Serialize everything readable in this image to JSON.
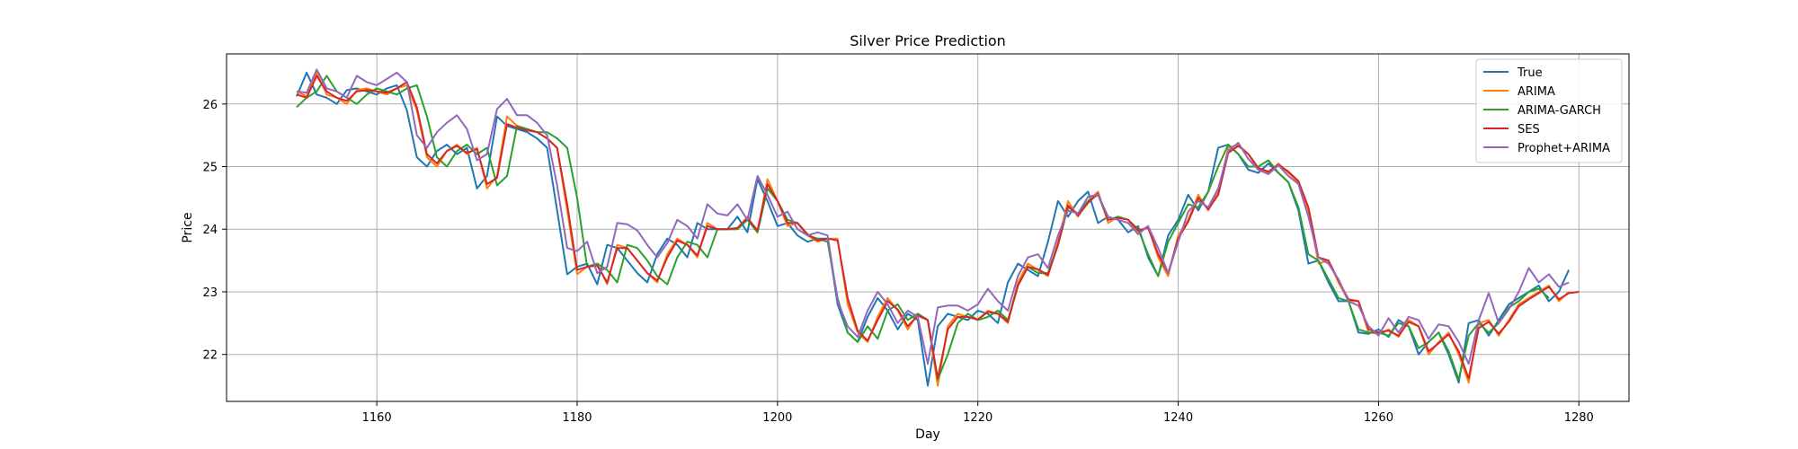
{
  "chart_data": {
    "type": "line",
    "title": "Silver Price Prediction",
    "xlabel": "Day",
    "ylabel": "Price",
    "xlim": [
      1145,
      1285
    ],
    "ylim": [
      21.25,
      26.8
    ],
    "xticks": [
      1160,
      1180,
      1200,
      1220,
      1240,
      1260,
      1280
    ],
    "yticks": [
      22,
      23,
      24,
      25,
      26
    ],
    "grid": true,
    "legend_position": "top-right",
    "x_start": 1152,
    "series": [
      {
        "name": "True",
        "color": "#1f77b4",
        "values": [
          26.12,
          26.5,
          26.15,
          26.1,
          26.0,
          26.22,
          26.25,
          26.2,
          26.15,
          26.25,
          26.3,
          25.9,
          25.15,
          25.0,
          25.25,
          25.35,
          25.2,
          25.3,
          24.65,
          24.85,
          25.8,
          25.65,
          25.6,
          25.55,
          25.45,
          25.3,
          24.3,
          23.28,
          23.4,
          23.45,
          23.12,
          23.75,
          23.7,
          23.5,
          23.3,
          23.15,
          23.6,
          23.85,
          23.75,
          23.55,
          24.1,
          24.0,
          24.0,
          24.0,
          24.2,
          23.95,
          24.8,
          24.45,
          24.05,
          24.1,
          23.9,
          23.8,
          23.85,
          23.85,
          22.8,
          22.35,
          22.2,
          22.6,
          22.9,
          22.7,
          22.4,
          22.65,
          22.55,
          21.5,
          22.45,
          22.65,
          22.6,
          22.55,
          22.7,
          22.65,
          22.5,
          23.15,
          23.45,
          23.35,
          23.25,
          23.8,
          24.45,
          24.2,
          24.45,
          24.6,
          24.1,
          24.2,
          24.15,
          23.95,
          24.05,
          23.55,
          23.25,
          23.9,
          24.15,
          24.55,
          24.3,
          24.6,
          25.3,
          25.35,
          25.2,
          24.95,
          24.9,
          25.05,
          24.9,
          24.75,
          24.3,
          23.45,
          23.5,
          23.15,
          22.85,
          22.85,
          22.35,
          22.33,
          22.4,
          22.28,
          22.55,
          22.45,
          22.0,
          22.2,
          22.35,
          22.0,
          21.55,
          22.5,
          22.55,
          22.3,
          22.55,
          22.8,
          22.9,
          23.0,
          23.1,
          22.85,
          23.0,
          23.35
        ]
      },
      {
        "name": "ARIMA",
        "color": "#ff7f0e",
        "values": [
          26.2,
          26.12,
          26.5,
          26.15,
          26.1,
          26.0,
          26.22,
          26.25,
          26.2,
          26.15,
          26.25,
          26.3,
          25.9,
          25.15,
          25.0,
          25.25,
          25.35,
          25.2,
          25.3,
          24.65,
          24.85,
          25.8,
          25.65,
          25.6,
          25.55,
          25.45,
          25.3,
          24.3,
          23.28,
          23.4,
          23.45,
          23.12,
          23.75,
          23.7,
          23.5,
          23.3,
          23.15,
          23.6,
          23.85,
          23.75,
          23.55,
          24.1,
          24.0,
          24.0,
          24.0,
          24.2,
          23.95,
          24.8,
          24.45,
          24.05,
          24.1,
          23.9,
          23.8,
          23.85,
          23.85,
          22.8,
          22.35,
          22.2,
          22.6,
          22.9,
          22.7,
          22.4,
          22.65,
          22.55,
          21.5,
          22.45,
          22.65,
          22.6,
          22.55,
          22.7,
          22.65,
          22.5,
          23.15,
          23.45,
          23.35,
          23.25,
          23.8,
          24.45,
          24.2,
          24.45,
          24.6,
          24.1,
          24.2,
          24.15,
          23.95,
          24.05,
          23.55,
          23.25,
          23.9,
          24.15,
          24.55,
          24.3,
          24.6,
          25.3,
          25.35,
          25.2,
          24.95,
          24.9,
          25.05,
          24.9,
          24.75,
          24.3,
          23.45,
          23.5,
          23.15,
          22.85,
          22.85,
          22.35,
          22.33,
          22.4,
          22.28,
          22.55,
          22.45,
          22.0,
          22.2,
          22.35,
          22.0,
          21.55,
          22.5,
          22.55,
          22.3,
          22.55,
          22.8,
          22.9,
          23.0,
          23.1,
          22.85,
          23.0
        ]
      },
      {
        "name": "ARIMA-GARCH",
        "color": "#2ca02c",
        "values": [
          25.95,
          26.1,
          26.2,
          26.45,
          26.2,
          26.1,
          26.0,
          26.15,
          26.25,
          26.2,
          26.15,
          26.25,
          26.3,
          25.8,
          25.15,
          25.0,
          25.25,
          25.35,
          25.2,
          25.3,
          24.7,
          24.85,
          25.65,
          25.6,
          25.55,
          25.55,
          25.45,
          25.3,
          24.5,
          23.4,
          23.45,
          23.35,
          23.15,
          23.75,
          23.7,
          23.5,
          23.25,
          23.12,
          23.55,
          23.8,
          23.75,
          23.55,
          24.0,
          24.0,
          24.0,
          24.15,
          23.95,
          24.65,
          24.45,
          24.15,
          24.1,
          23.9,
          23.85,
          23.8,
          22.9,
          22.35,
          22.2,
          22.45,
          22.25,
          22.7,
          22.8,
          22.55,
          22.65,
          22.55,
          21.6,
          22.0,
          22.5,
          22.65,
          22.55,
          22.6,
          22.7,
          22.55,
          23.1,
          23.4,
          23.3,
          23.3,
          23.75,
          24.35,
          24.25,
          24.45,
          24.55,
          24.15,
          24.2,
          24.15,
          24.0,
          23.6,
          23.25,
          23.8,
          24.1,
          24.4,
          24.35,
          24.6,
          25.0,
          25.35,
          25.2,
          25.0,
          25.0,
          25.1,
          24.9,
          24.75,
          24.35,
          23.6,
          23.5,
          23.2,
          22.9,
          22.85,
          22.4,
          22.35,
          22.35,
          22.3,
          22.5,
          22.45,
          22.1,
          22.2,
          22.35,
          22.05,
          21.6,
          22.3,
          22.5,
          22.35,
          22.5,
          22.75,
          22.85,
          23.0,
          23.05,
          22.9
        ]
      },
      {
        "name": "SES",
        "color": "#d62728",
        "values": [
          26.15,
          26.1,
          26.45,
          26.2,
          26.1,
          26.05,
          26.2,
          26.22,
          26.2,
          26.18,
          26.25,
          26.35,
          25.95,
          25.2,
          25.05,
          25.25,
          25.33,
          25.22,
          25.28,
          24.72,
          24.82,
          25.68,
          25.62,
          25.58,
          25.55,
          25.45,
          25.3,
          24.4,
          23.35,
          23.4,
          23.42,
          23.15,
          23.7,
          23.7,
          23.5,
          23.3,
          23.18,
          23.55,
          23.82,
          23.75,
          23.58,
          24.05,
          24.0,
          24.0,
          24.02,
          24.18,
          23.98,
          24.72,
          24.45,
          24.1,
          24.1,
          23.92,
          23.82,
          23.85,
          23.82,
          22.9,
          22.38,
          22.22,
          22.55,
          22.85,
          22.72,
          22.45,
          22.62,
          22.55,
          21.62,
          22.4,
          22.6,
          22.6,
          22.56,
          22.68,
          22.65,
          22.52,
          23.1,
          23.4,
          23.36,
          23.27,
          23.75,
          24.38,
          24.22,
          24.42,
          24.57,
          24.15,
          24.18,
          24.15,
          23.98,
          24.02,
          23.6,
          23.3,
          23.85,
          24.12,
          24.5,
          24.32,
          24.55,
          25.22,
          25.33,
          25.2,
          24.98,
          24.92,
          25.03,
          24.92,
          24.77,
          24.35,
          23.55,
          23.5,
          23.18,
          22.88,
          22.85,
          22.4,
          22.35,
          22.38,
          22.3,
          22.52,
          22.45,
          22.05,
          22.18,
          22.32,
          22.05,
          21.62,
          22.42,
          22.52,
          22.33,
          22.52,
          22.77,
          22.88,
          22.98,
          23.08,
          22.88,
          22.98,
          23.0
        ]
      },
      {
        "name": "Prophet+ARIMA",
        "color": "#9467bd",
        "values": [
          26.2,
          26.18,
          26.55,
          26.25,
          26.2,
          26.1,
          26.45,
          26.35,
          26.3,
          26.4,
          26.5,
          26.35,
          25.5,
          25.3,
          25.55,
          25.7,
          25.82,
          25.6,
          25.1,
          25.2,
          25.92,
          26.08,
          25.82,
          25.82,
          25.7,
          25.5,
          24.7,
          23.7,
          23.65,
          23.8,
          23.3,
          23.4,
          24.1,
          24.08,
          23.98,
          23.75,
          23.55,
          23.78,
          24.15,
          24.05,
          23.85,
          24.4,
          24.25,
          24.22,
          24.4,
          24.15,
          24.85,
          24.55,
          24.2,
          24.28,
          24.0,
          23.9,
          23.95,
          23.9,
          22.85,
          22.45,
          22.28,
          22.7,
          23.0,
          22.8,
          22.5,
          22.7,
          22.6,
          21.85,
          22.75,
          22.78,
          22.78,
          22.7,
          22.8,
          23.05,
          22.85,
          22.7,
          23.25,
          23.55,
          23.6,
          23.38,
          23.9,
          24.3,
          24.25,
          24.52,
          24.55,
          24.2,
          24.15,
          24.1,
          23.92,
          24.05,
          23.7,
          23.3,
          23.8,
          24.28,
          24.45,
          24.35,
          24.65,
          25.25,
          25.38,
          25.12,
          24.95,
          24.88,
          25.02,
          24.85,
          24.72,
          24.2,
          23.55,
          23.45,
          23.2,
          22.85,
          22.78,
          22.45,
          22.3,
          22.58,
          22.35,
          22.6,
          22.55,
          22.25,
          22.48,
          22.45,
          22.2,
          21.85,
          22.55,
          22.98,
          22.5,
          22.72,
          23.0,
          23.38,
          23.15,
          23.28,
          23.08,
          23.15
        ]
      }
    ]
  }
}
